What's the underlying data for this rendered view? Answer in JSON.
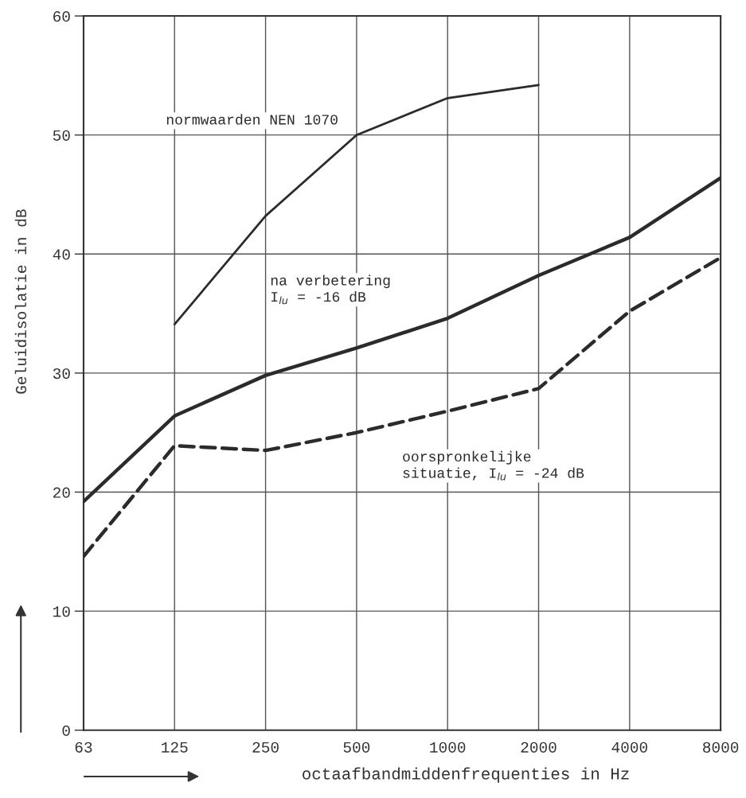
{
  "chart_data": {
    "type": "line",
    "xlabel": "octaafbandmiddenfrequenties in Hz",
    "ylabel": "Geluidisolatie in dB",
    "categories": [
      "63",
      "125",
      "250",
      "500",
      "1000",
      "2000",
      "4000",
      "8000"
    ],
    "series": [
      {
        "name": "normwaarden NEN 1070",
        "color": "#2b2b2b",
        "line_style": "solid",
        "values": [
          null,
          34.1,
          43.2,
          50.0,
          53.1,
          54.2,
          null,
          null
        ]
      },
      {
        "name": "na verbetering\nI$_{lu}$ = -16 dB",
        "color": "#2b2b2b",
        "line_style": "solid",
        "values": [
          19.2,
          26.4,
          29.8,
          32.1,
          34.6,
          38.2,
          41.4,
          46.4
        ]
      },
      {
        "name": "oorspronkelijke\nsituatie, I$_{lu}$ = -24 dB",
        "color": "#2b2b2b",
        "line_style": "dashed",
        "values": [
          14.6,
          23.9,
          23.5,
          25.0,
          26.8,
          28.7,
          35.2,
          39.7
        ]
      }
    ],
    "ylim": [
      0,
      60
    ],
    "yticks": [
      0,
      10,
      20,
      30,
      40,
      50,
      60
    ],
    "grid": true,
    "marker": "none"
  }
}
